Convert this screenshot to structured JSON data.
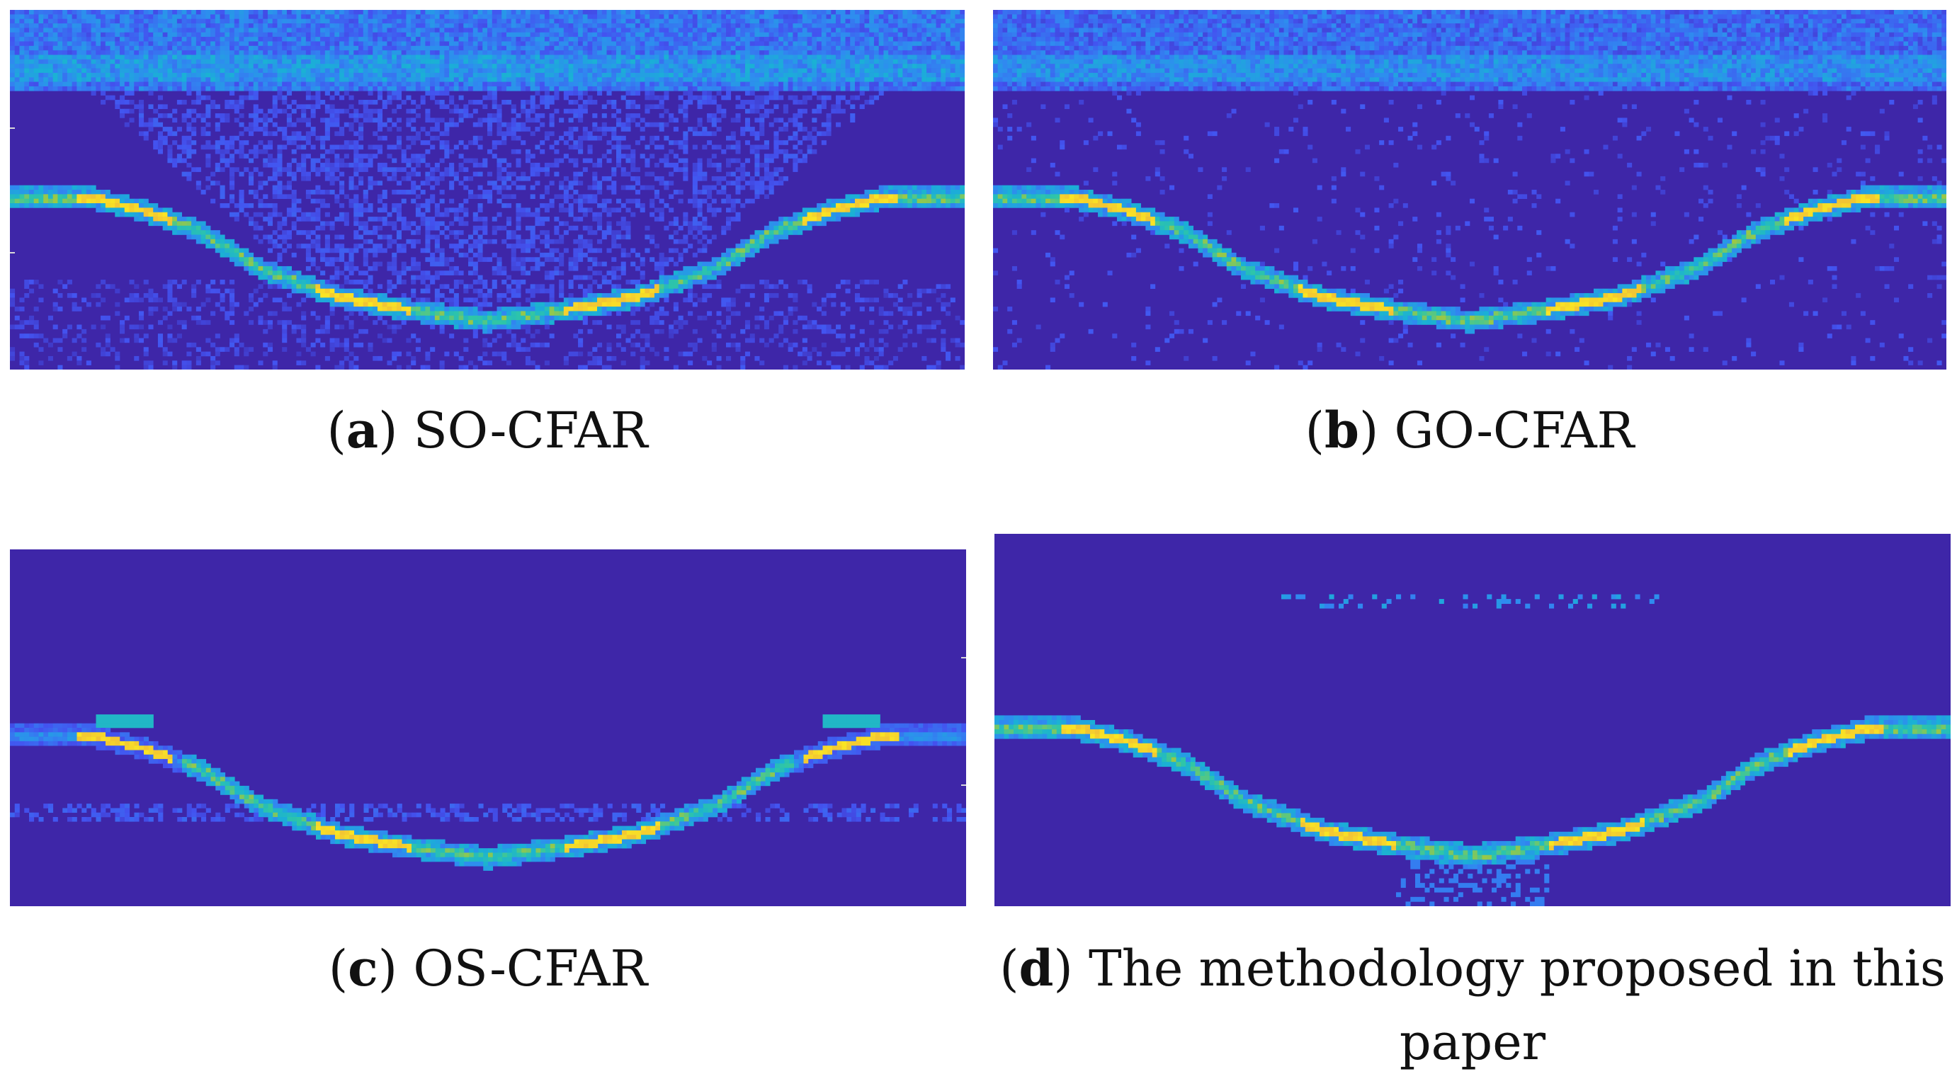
{
  "figure": {
    "panels": [
      {
        "letter": "a",
        "label": "SO-CFAR",
        "type": "so"
      },
      {
        "letter": "b",
        "label": "GO-CFAR",
        "type": "go"
      },
      {
        "letter": "c",
        "label": "OS-CFAR",
        "type": "os"
      },
      {
        "letter": "d",
        "label": "The methodology proposed in this paper",
        "type": "proposed"
      }
    ]
  },
  "colormap": {
    "background": "#3e26a8",
    "stops": [
      "#3e26a8",
      "#4353f0",
      "#2f8bf0",
      "#1ab0d6",
      "#2fc6a6",
      "#a8c83a",
      "#f2c434",
      "#f9e524"
    ]
  }
}
